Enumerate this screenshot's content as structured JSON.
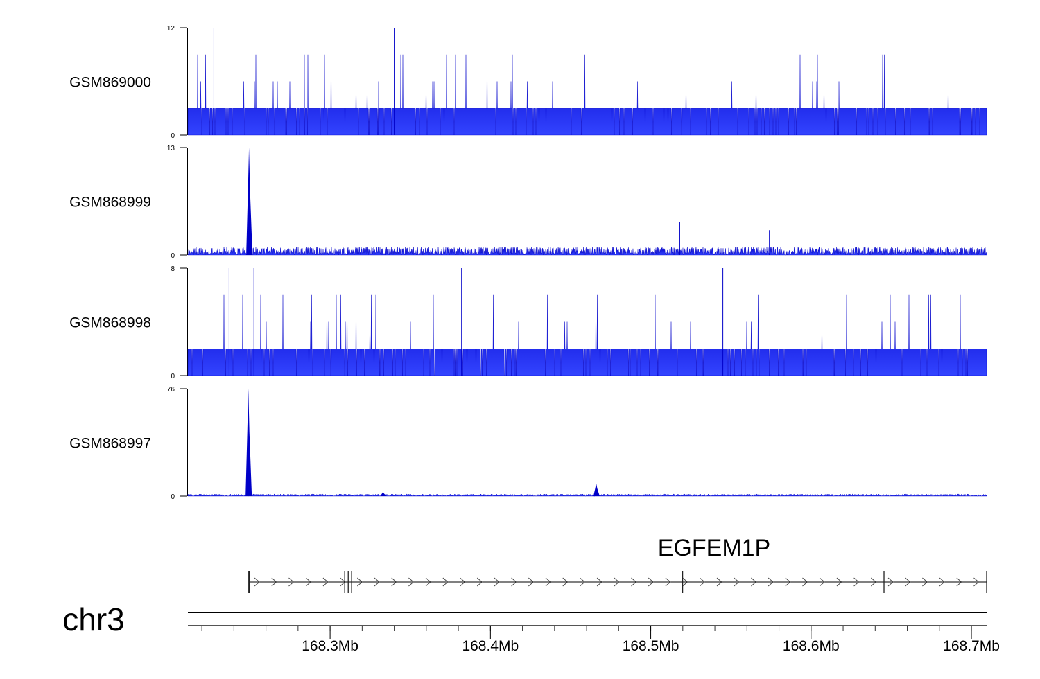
{
  "chart_data": {
    "type": "area",
    "chromosome": "chr3",
    "xrange_mb": [
      168.2113,
      168.7095
    ],
    "axis": {
      "major_ticks_mb": [
        168.3,
        168.4,
        168.5,
        168.6,
        168.7
      ],
      "major_labels": [
        "168.3Mb",
        "168.4Mb",
        "168.5Mb",
        "168.6Mb",
        "168.7Mb"
      ],
      "minor_step_mb": 0.02
    },
    "tracks": [
      {
        "name": "GSM869000",
        "ylim": [
          0,
          12
        ],
        "ymax_label": "12",
        "ymin_label": "0",
        "baseline_max": 3,
        "step": 3,
        "spike_rate": 0.18,
        "peaks": [
          [
            168.2275,
            12
          ],
          [
            168.34,
            12
          ]
        ]
      },
      {
        "name": "GSM868999",
        "ylim": [
          0,
          13
        ],
        "ymax_label": "13",
        "ymin_label": "0",
        "baseline_max": 1,
        "step": 1,
        "spike_rate": 0.0,
        "peaks": [
          [
            168.2494,
            13
          ],
          [
            168.5181,
            4
          ],
          [
            168.574,
            3
          ]
        ]
      },
      {
        "name": "GSM868998",
        "ylim": [
          0,
          8
        ],
        "ymax_label": "8",
        "ymin_label": "0",
        "baseline_max": 2,
        "step": 2,
        "spike_rate": 0.22,
        "peaks": [
          [
            168.237,
            8
          ],
          [
            168.2525,
            8
          ],
          [
            168.382,
            8
          ],
          [
            168.545,
            8
          ]
        ]
      },
      {
        "name": "GSM868997",
        "ylim": [
          0,
          76
        ],
        "ymax_label": "76",
        "ymin_label": "0",
        "baseline_max": 1.5,
        "step": 0.5,
        "spike_rate": 0.0,
        "peaks": [
          [
            168.249,
            76
          ],
          [
            168.466,
            9
          ],
          [
            168.333,
            3
          ]
        ]
      }
    ],
    "gene": {
      "name": "EGFEM1P",
      "strand": "+",
      "start_mb": 168.2494,
      "end_mb": 168.7095,
      "exons_mb": [
        168.2494,
        168.3091,
        168.3113,
        168.3134,
        168.5199,
        168.6455,
        168.7095
      ]
    }
  },
  "colors": {
    "signal": "#0000c8",
    "signal_light": "#3344ff",
    "axis": "#000000"
  }
}
